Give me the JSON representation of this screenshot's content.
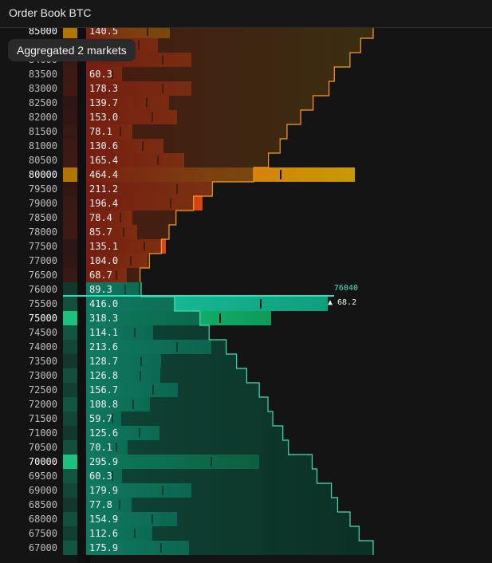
{
  "header": {
    "title": "Order Book BTC"
  },
  "tooltip": {
    "text": "Aggregated 2 markets"
  },
  "last_trade": {
    "price": "76040",
    "change": "▲ 68.2"
  },
  "asks": [
    {
      "price": "85000",
      "volume": "140.5",
      "bar": 105
    },
    {
      "price": "84500",
      "volume": "",
      "bar": 90
    },
    {
      "price": "84000",
      "volume": "",
      "bar": 132
    },
    {
      "price": "83500",
      "volume": "60.3",
      "bar": 45
    },
    {
      "price": "83000",
      "volume": "178.3",
      "bar": 132
    },
    {
      "price": "82500",
      "volume": "139.7",
      "bar": 104
    },
    {
      "price": "82000",
      "volume": "153.0",
      "bar": 114
    },
    {
      "price": "81500",
      "volume": "78.1",
      "bar": 58
    },
    {
      "price": "81000",
      "volume": "130.6",
      "bar": 97
    },
    {
      "price": "80500",
      "volume": "165.4",
      "bar": 123
    },
    {
      "price": "80000",
      "volume": "464.4",
      "bar": 337
    },
    {
      "price": "79500",
      "volume": "211.2",
      "bar": 157
    },
    {
      "price": "79000",
      "volume": "196.4",
      "bar": 146
    },
    {
      "price": "78500",
      "volume": "78.4",
      "bar": 58
    },
    {
      "price": "78000",
      "volume": "85.7",
      "bar": 64
    },
    {
      "price": "77500",
      "volume": "135.1",
      "bar": 100
    },
    {
      "price": "77000",
      "volume": "104.0",
      "bar": 77
    },
    {
      "price": "76500",
      "volume": "68.7",
      "bar": 51
    }
  ],
  "bids": [
    {
      "price": "76000",
      "volume": "89.3",
      "bar": 66
    },
    {
      "price": "75500",
      "volume": "416.0",
      "bar": 303
    },
    {
      "price": "75000",
      "volume": "318.3",
      "bar": 232
    },
    {
      "price": "74500",
      "volume": "114.1",
      "bar": 84
    },
    {
      "price": "74000",
      "volume": "213.6",
      "bar": 157
    },
    {
      "price": "73500",
      "volume": "128.7",
      "bar": 94
    },
    {
      "price": "73000",
      "volume": "126.8",
      "bar": 93
    },
    {
      "price": "72500",
      "volume": "156.7",
      "bar": 115
    },
    {
      "price": "72000",
      "volume": "108.8",
      "bar": 80
    },
    {
      "price": "71500",
      "volume": "59.7",
      "bar": 44
    },
    {
      "price": "71000",
      "volume": "125.6",
      "bar": 92
    },
    {
      "price": "70500",
      "volume": "70.1",
      "bar": 52
    },
    {
      "price": "70000",
      "volume": "295.9",
      "bar": 217
    },
    {
      "price": "69500",
      "volume": "60.3",
      "bar": 45
    },
    {
      "price": "69000",
      "volume": "179.9",
      "bar": 132
    },
    {
      "price": "68500",
      "volume": "77.8",
      "bar": 57
    },
    {
      "price": "68000",
      "volume": "154.9",
      "bar": 114
    },
    {
      "price": "67500",
      "volume": "112.6",
      "bar": 83
    },
    {
      "price": "67000",
      "volume": "175.9",
      "bar": 129
    }
  ],
  "colors": {
    "ask_bar": "#d83f18",
    "ask_major": "#c98a00",
    "bid_bar": "#14b88e",
    "ask_depth_line": "#ff9a1a",
    "bid_depth_line": "#3fe0b8",
    "last_line": "#2fe0c0"
  }
}
